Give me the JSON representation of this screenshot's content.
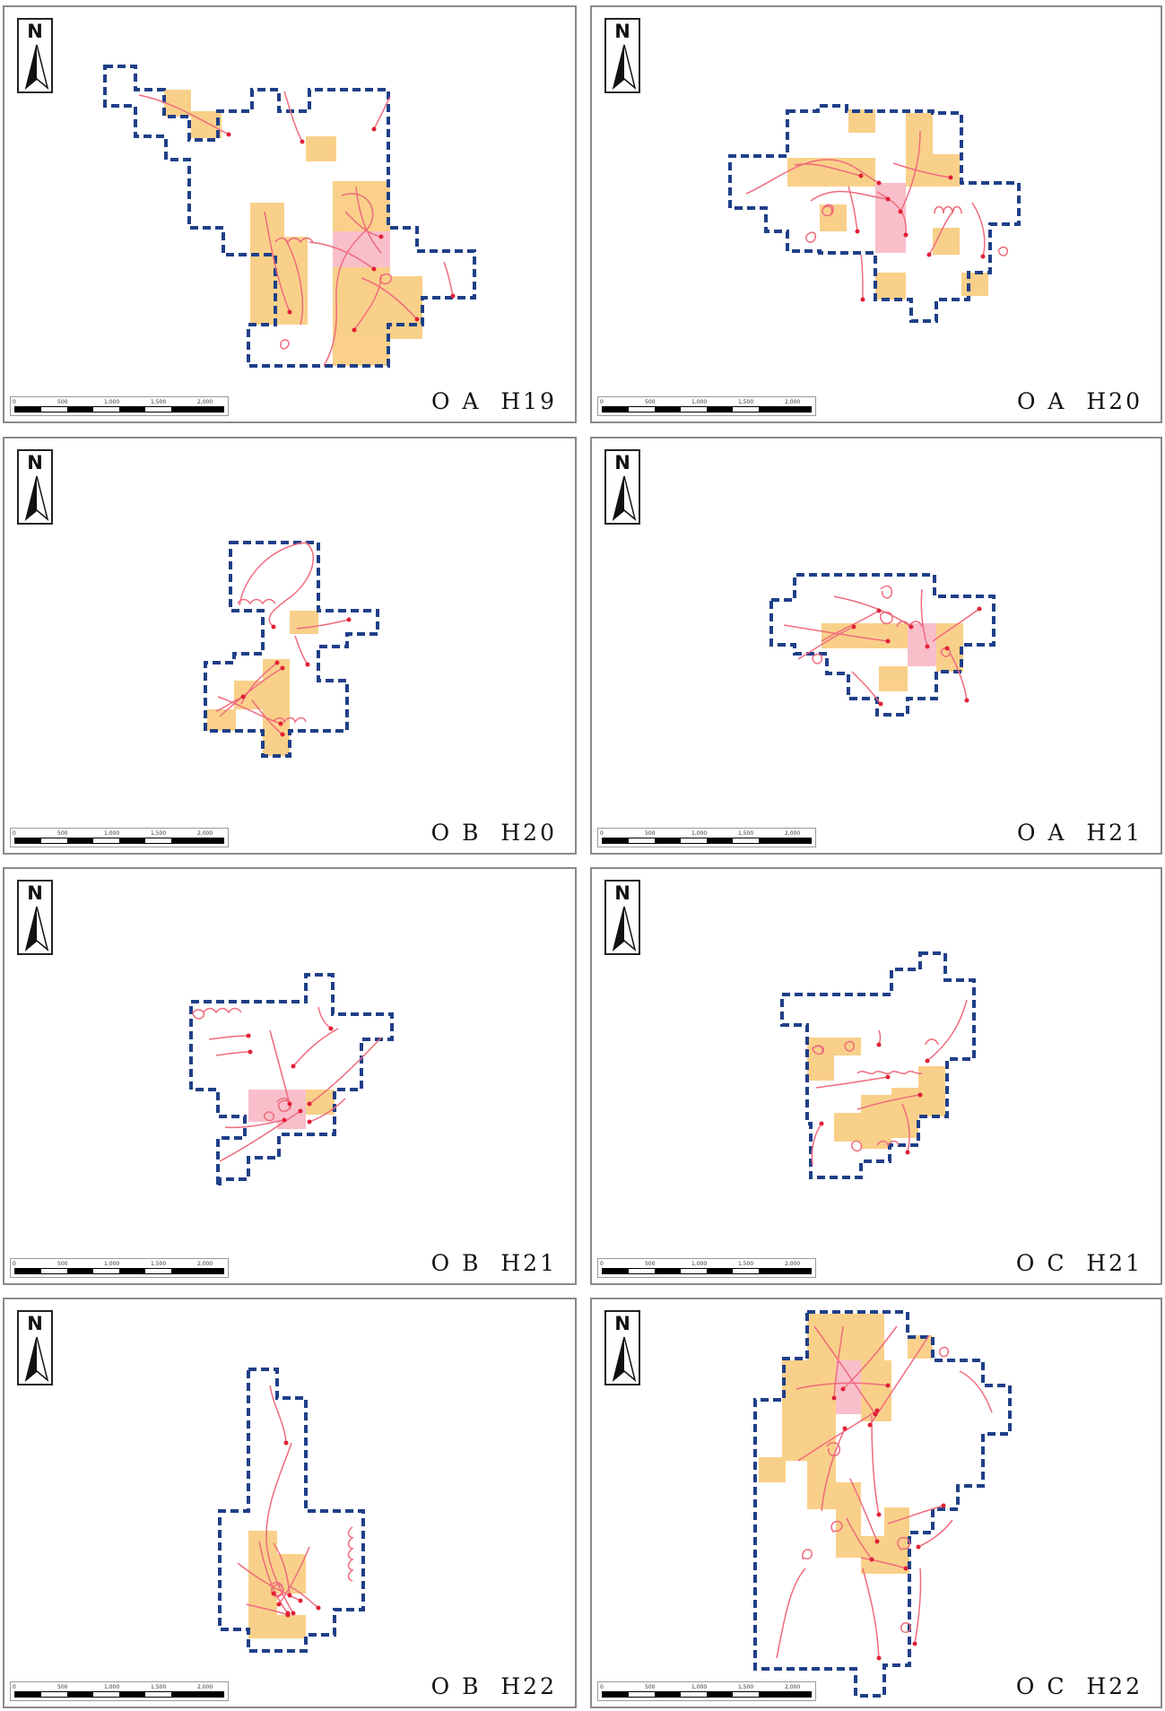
{
  "north_arrow_letter": "N",
  "scale_ticks": [
    "0",
    "500",
    "1,000",
    "1,500",
    "2,000"
  ],
  "colors": {
    "boundary": "#1f3f88",
    "track": "#ef6b7d",
    "track_point": "#e02036",
    "cell_orange": "#f9c875",
    "cell_pink": "#f7b4c2",
    "frame": "#8a8a8a"
  },
  "panels": [
    {
      "site": "O A",
      "year": "H19"
    },
    {
      "site": "O A",
      "year": "H20"
    },
    {
      "site": "O B",
      "year": "H20"
    },
    {
      "site": "O A",
      "year": "H21"
    },
    {
      "site": "O B",
      "year": "H21"
    },
    {
      "site": "O C",
      "year": "H21"
    },
    {
      "site": "O B",
      "year": "H22"
    },
    {
      "site": "O C",
      "year": "H22"
    }
  ]
}
